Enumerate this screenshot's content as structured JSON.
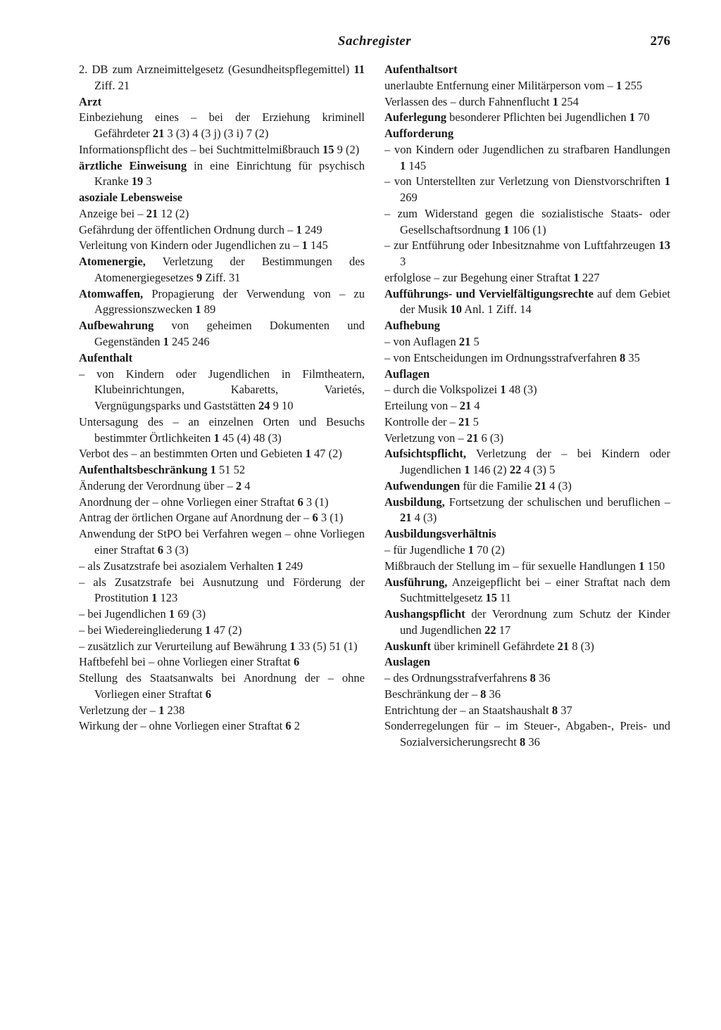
{
  "header": {
    "title": "Sachregister",
    "page_number": "276"
  },
  "left_column": [
    {
      "text": "2. DB zum Arzneimittelgesetz (Gesundheitspflegemittel) <b>11</b> Ziff. 21"
    },
    {
      "text": "<b>Arzt</b>"
    },
    {
      "text": "Einbeziehung eines – bei der Erziehung kriminell Gefährdeter <b>21</b> 3 (3) 4 (3 j) (3 i) 7 (2)"
    },
    {
      "text": "Informationspflicht des – bei Suchtmittelmißbrauch <b>15</b> 9 (2)"
    },
    {
      "text": "<b>ärztliche Einweisung</b> in eine Einrichtung für psychisch Kranke <b>19</b> 3"
    },
    {
      "text": "<b>asoziale Lebensweise</b>"
    },
    {
      "text": "Anzeige bei – <b>21</b> 12 (2)"
    },
    {
      "text": "Gefährdung der öffentlichen Ordnung durch – <b>1</b> 249"
    },
    {
      "text": "Verleitung von Kindern oder Jugendlichen zu – <b>1</b> 145"
    },
    {
      "text": "<b>Atomenergie,</b> Verletzung der Bestimmungen des Atomenergiegesetzes <b>9</b> Ziff. 31"
    },
    {
      "text": "<b>Atomwaffen,</b> Propagierung der Verwendung von – zu Aggressionszwecken <b>1</b> 89"
    },
    {
      "text": "<b>Aufbewahrung</b> von geheimen Dokumenten und Gegenständen <b>1</b> 245 246"
    },
    {
      "text": "<b>Aufenthalt</b>"
    },
    {
      "text": "– von Kindern oder Jugendlichen in Filmtheatern, Klubeinrichtungen, Kabaretts, Varietés, Vergnügungsparks und Gaststätten <b>24</b> 9 10"
    },
    {
      "text": "Untersagung des – an einzelnen Orten und Besuchs bestimmter Örtlichkeiten <b>1</b> 45 (4) 48 (3)"
    },
    {
      "text": "Verbot des – an bestimmten Orten und Gebieten <b>1</b> 47 (2)"
    },
    {
      "text": "<b>Aufenthaltsbeschränkung 1</b> 51 52"
    },
    {
      "text": "Änderung der Verordnung über – <b>2</b> 4"
    },
    {
      "text": "Anordnung der – ohne Vorliegen einer Straftat <b>6</b> 3 (1)"
    },
    {
      "text": "Antrag der örtlichen Organe auf Anordnung der – <b>6</b> 3 (1)"
    },
    {
      "text": "Anwendung der StPO bei Verfahren wegen – ohne Vorliegen einer Straftat <b>6</b> 3 (3)"
    },
    {
      "text": "– als Zusatzstrafe bei asozialem Verhalten <b>1</b> 249"
    },
    {
      "text": "– als Zusatzstrafe bei Ausnutzung und Förderung der Prostitution <b>1</b> 123"
    },
    {
      "text": "– bei Jugendlichen <b>1</b> 69 (3)"
    },
    {
      "text": "– bei Wiedereingliederung <b>1</b> 47 (2)"
    },
    {
      "text": "– zusätzlich zur Verurteilung auf Bewährung <b>1</b> 33 (5) 51 (1)"
    },
    {
      "text": "Haftbefehl bei – ohne Vorliegen einer Straftat <b>6</b>"
    },
    {
      "text": "Stellung des Staatsanwalts bei Anordnung der – ohne Vorliegen einer Straftat <b>6</b>"
    },
    {
      "text": "Verletzung der – <b>1</b> 238"
    },
    {
      "text": "Wirkung der – ohne Vorliegen einer Straftat <b>6</b> 2"
    }
  ],
  "right_column": [
    {
      "text": "<b>Aufenthaltsort</b>"
    },
    {
      "text": "unerlaubte Entfernung einer Militärperson vom – <b>1</b> 255"
    },
    {
      "text": "Verlassen des – durch Fahnenflucht <b>1</b> 254"
    },
    {
      "text": "<b>Auferlegung</b> besonderer Pflichten bei Jugendlichen <b>1</b> 70"
    },
    {
      "text": "<b>Aufforderung</b>"
    },
    {
      "text": "– von Kindern oder Jugendlichen zu strafbaren Handlungen <b>1</b> 145"
    },
    {
      "text": "– von Unterstellten zur Verletzung von Dienstvorschriften <b>1</b> 269"
    },
    {
      "text": "– zum Widerstand gegen die sozialistische Staats- oder Gesellschaftsordnung <b>1</b> 106 (1)"
    },
    {
      "text": "– zur Entführung oder Inbesitznahme von Luftfahrzeugen <b>13</b> 3"
    },
    {
      "text": "erfolglose – zur Begehung einer Straftat <b>1</b> 227"
    },
    {
      "text": "<b>Aufführungs- und Vervielfältigungsrechte</b> auf dem Gebiet der Musik <b>10</b> Anl. 1 Ziff. 14"
    },
    {
      "text": "<b>Aufhebung</b>"
    },
    {
      "text": "– von Auflagen <b>21</b> 5"
    },
    {
      "text": "– von Entscheidungen im Ordnungsstrafverfahren <b>8</b> 35"
    },
    {
      "text": "<b>Auflagen</b>"
    },
    {
      "text": "– durch die Volkspolizei <b>1</b> 48 (3)"
    },
    {
      "text": "Erteilung von – <b>21</b> 4"
    },
    {
      "text": "Kontrolle der – <b>21</b> 5"
    },
    {
      "text": "Verletzung von – <b>21</b> 6 (3)"
    },
    {
      "text": "<b>Aufsichtspflicht,</b> Verletzung der – bei Kindern oder Jugendlichen <b>1</b> 146 (2) <b>22</b> 4 (3) 5"
    },
    {
      "text": "<b>Aufwendungen</b> für die Familie <b>21</b> 4 (3)"
    },
    {
      "text": "<b>Ausbildung,</b> Fortsetzung der schulischen und beruflichen – <b>21</b> 4 (3)"
    },
    {
      "text": "<b>Ausbildungsverhältnis</b>"
    },
    {
      "text": "– für Jugendliche <b>1</b> 70 (2)"
    },
    {
      "text": "Mißbrauch der Stellung im – für sexuelle Handlungen <b>1</b> 150"
    },
    {
      "text": "<b>Ausführung,</b> Anzeigepflicht bei – einer Straftat nach dem Suchtmittelgesetz <b>15</b> 11"
    },
    {
      "text": "<b>Aushangspflicht</b> der Verordnung zum Schutz der Kinder und Jugendlichen <b>22</b> 17"
    },
    {
      "text": "<b>Auskunft</b> über kriminell Gefährdete <b>21</b> 8 (3)"
    },
    {
      "text": "<b>Auslagen</b>"
    },
    {
      "text": "– des Ordnungsstrafverfahrens <b>8</b> 36"
    },
    {
      "text": "Beschränkung der – <b>8</b> 36"
    },
    {
      "text": "Entrichtung der – an Staatshaushalt <b>8</b> 37"
    },
    {
      "text": "Sonderregelungen für – im Steuer-, Abgaben-, Preis- und Sozialversicherungsrecht <b>8</b> 36"
    }
  ]
}
